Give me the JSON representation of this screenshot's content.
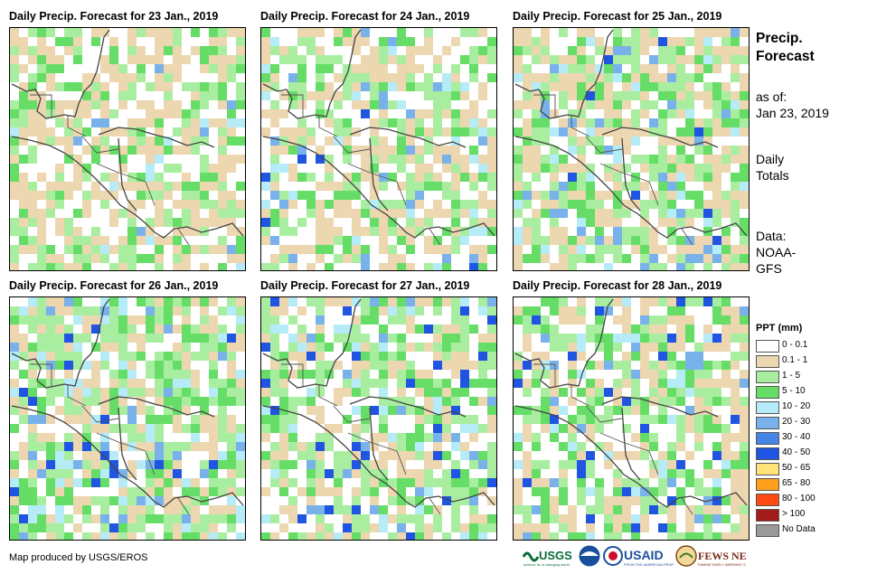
{
  "panels": [
    {
      "title": "Daily Precip. Forecast for 23 Jan., 2019"
    },
    {
      "title": "Daily Precip. Forecast for 24 Jan., 2019"
    },
    {
      "title": "Daily Precip. Forecast for 25 Jan., 2019"
    },
    {
      "title": "Daily Precip. Forecast for 26 Jan., 2019"
    },
    {
      "title": "Daily Precip. Forecast for 27 Jan., 2019"
    },
    {
      "title": "Daily Precip. Forecast for 28 Jan., 2019"
    }
  ],
  "sidebar": {
    "title_line1": "Precip.",
    "title_line2": "Forecast",
    "asof_line1": "as of:",
    "asof_line2": "Jan 23, 2019",
    "totals_line1": "Daily",
    "totals_line2": "Totals",
    "data_line1": "Data:",
    "data_line2": "NOAA-",
    "data_line3": "GFS"
  },
  "legend": {
    "title": "PPT (mm)",
    "items": [
      {
        "label": "0 - 0.1",
        "color": "#ffffff"
      },
      {
        "label": "0.1 - 1",
        "color": "#ecd7b0"
      },
      {
        "label": "1 - 5",
        "color": "#a9eea0"
      },
      {
        "label": "5 - 10",
        "color": "#66dd66"
      },
      {
        "label": "10 - 20",
        "color": "#b5ecf7"
      },
      {
        "label": "20 - 30",
        "color": "#79b2ea"
      },
      {
        "label": "30 - 40",
        "color": "#4485e6"
      },
      {
        "label": "40 - 50",
        "color": "#1f55e0"
      },
      {
        "label": "50 - 65",
        "color": "#ffe27a"
      },
      {
        "label": "65 - 80",
        "color": "#ff9f1c"
      },
      {
        "label": "80 - 100",
        "color": "#ff4a14"
      },
      {
        "label": "> 100",
        "color": "#a31c1c"
      },
      {
        "label": "No Data",
        "color": "#9a9a9a"
      }
    ]
  },
  "credit": "Map produced by USGS/EROS",
  "logos": {
    "usgs": "USGS",
    "usaid": "USAID",
    "fewsnet": "FEWS NET"
  }
}
